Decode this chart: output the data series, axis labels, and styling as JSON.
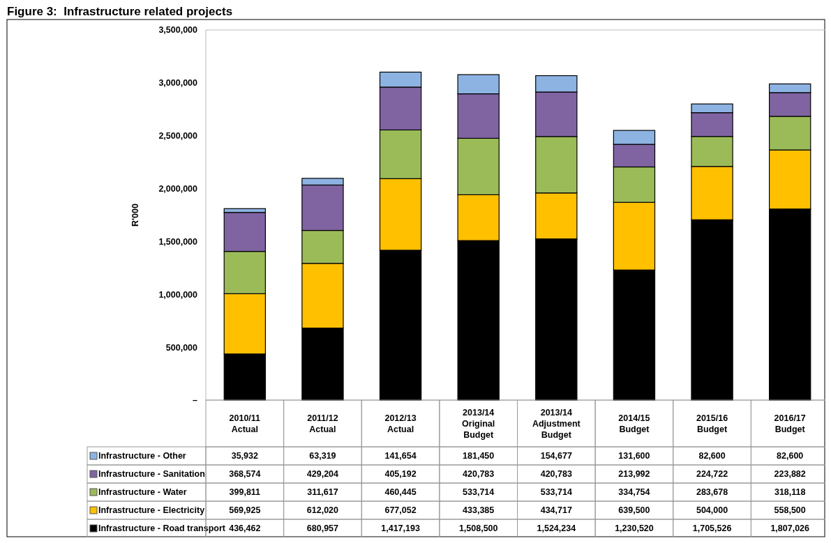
{
  "chart_data": {
    "type": "bar",
    "title": "Figure 3:  Infrastructure related projects",
    "ylabel": "R'000",
    "stacked": true,
    "legend": "bottom",
    "grid": false,
    "categories": [
      "2010/11\nActual",
      "2011/12\nActual",
      "2012/13\nActual",
      "2013/14\nOriginal\nBudget",
      "2013/14\nAdjustment\nBudget",
      "2014/15\nBudget",
      "2015/16\nBudget",
      "2016/17\nBudget"
    ],
    "ylim": [
      0,
      3500000
    ],
    "yticks": [
      {
        "value": 0,
        "label": "–"
      },
      {
        "value": 500000,
        "label": "500,000"
      },
      {
        "value": 1000000,
        "label": "1,000,000"
      },
      {
        "value": 1500000,
        "label": "1,500,000"
      },
      {
        "value": 2000000,
        "label": "2,000,000"
      },
      {
        "value": 2500000,
        "label": "2,500,000"
      },
      {
        "value": 3000000,
        "label": "3,000,000"
      },
      {
        "value": 3500000,
        "label": "3,500,000"
      }
    ],
    "series": [
      {
        "name": "Infrastructure - Road transport",
        "color": "#000000",
        "values": [
          436462,
          680957,
          1417193,
          1508500,
          1524234,
          1230520,
          1705526,
          1807026
        ],
        "value_labels": [
          "436,462",
          "680,957",
          "1,417,193",
          "1,508,500",
          "1,524,234",
          "1,230,520",
          "1,705,526",
          "1,807,026"
        ]
      },
      {
        "name": "Infrastructure - Electricity",
        "color": "#ffc000",
        "values": [
          569925,
          612020,
          677052,
          433385,
          434717,
          639500,
          504000,
          558500
        ],
        "value_labels": [
          "569,925",
          "612,020",
          "677,052",
          "433,385",
          "434,717",
          "639,500",
          "504,000",
          "558,500"
        ]
      },
      {
        "name": "Infrastructure - Water",
        "color": "#9bbb59",
        "values": [
          399811,
          311617,
          460445,
          533714,
          533714,
          334754,
          283678,
          318118
        ],
        "value_labels": [
          "399,811",
          "311,617",
          "460,445",
          "533,714",
          "533,714",
          "334,754",
          "283,678",
          "318,118"
        ]
      },
      {
        "name": "Infrastructure - Sanitation",
        "color": "#8064a2",
        "values": [
          368574,
          429204,
          405192,
          420783,
          420783,
          213992,
          224722,
          223882
        ],
        "value_labels": [
          "368,574",
          "429,204",
          "405,192",
          "420,783",
          "420,783",
          "213,992",
          "224,722",
          "223,882"
        ]
      },
      {
        "name": "Infrastructure - Other",
        "color": "#8db3e2",
        "values": [
          35932,
          63319,
          141654,
          181450,
          154677,
          131600,
          82600,
          82600
        ],
        "value_labels": [
          "35,932",
          "63,319",
          "141,654",
          "181,450",
          "154,677",
          "131,600",
          "82,600",
          "82,600"
        ]
      }
    ]
  }
}
